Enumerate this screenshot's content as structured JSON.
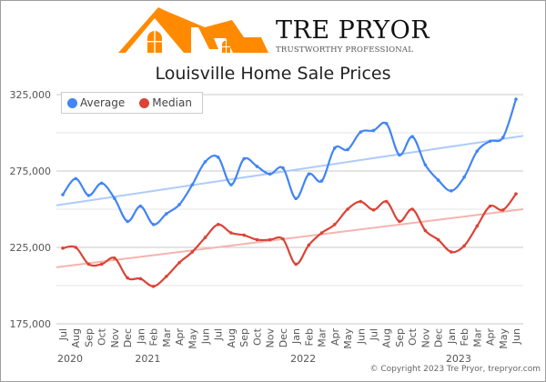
{
  "brand": {
    "name": "TRE PRYOR",
    "tagline": "TRUSTWORTHY PROFESSIONAL",
    "logo_color": "#ff8a00"
  },
  "copyright": "© Copyright 2023 Tre Pryor, trepryor.com",
  "chart_data": {
    "type": "line",
    "title": "Louisville Home Sale Prices",
    "xlabel": "",
    "ylabel": "",
    "ylim": [
      175000,
      325000
    ],
    "yticks": [
      175000,
      225000,
      275000,
      325000
    ],
    "ytick_labels": [
      "175,000",
      "225,000",
      "275,000",
      "325,000"
    ],
    "minor_gridlines": [
      200000,
      250000,
      300000
    ],
    "grid": true,
    "legend_position": "top-left",
    "x": [
      "Jul",
      "Aug",
      "Sep",
      "Oct",
      "Nov",
      "Dec",
      "Jan",
      "Feb",
      "Mar",
      "Apr",
      "May",
      "Jun",
      "Jul",
      "Aug",
      "Sep",
      "Oct",
      "Nov",
      "Dec",
      "Jan",
      "Feb",
      "Mar",
      "Apr",
      "May",
      "Jun",
      "Jul",
      "Aug",
      "Sep",
      "Oct",
      "Nov",
      "Dec",
      "Jan",
      "Feb",
      "Mar",
      "Apr",
      "May",
      "Jun"
    ],
    "year_labels": [
      {
        "label": "2020",
        "index": 0
      },
      {
        "label": "2021",
        "index": 6
      },
      {
        "label": "2022",
        "index": 18
      },
      {
        "label": "2023",
        "index": 30
      }
    ],
    "series": [
      {
        "name": "Average",
        "color": "#4285f4",
        "trend_color": "#aecbfa",
        "values": [
          259500,
          270000,
          259000,
          267000,
          257000,
          242000,
          252000,
          240000,
          247000,
          253000,
          266000,
          281000,
          284000,
          266000,
          283000,
          278000,
          273000,
          277000,
          257000,
          273000,
          268500,
          290000,
          289000,
          300500,
          301500,
          306000,
          285500,
          297500,
          279000,
          269000,
          262000,
          271000,
          288000,
          294500,
          297000,
          322000
        ],
        "trend": [
          252500,
          298000
        ]
      },
      {
        "name": "Median",
        "color": "#db4437",
        "trend_color": "#f4b4ae",
        "values": [
          224500,
          225000,
          214000,
          214000,
          218000,
          205000,
          204500,
          199500,
          206000,
          215000,
          222000,
          231500,
          240000,
          234500,
          233000,
          230000,
          230000,
          230500,
          214000,
          226500,
          234500,
          240000,
          250000,
          255000,
          249500,
          255000,
          242000,
          250000,
          236000,
          230000,
          222000,
          226000,
          239000,
          252000,
          249500,
          260000
        ],
        "trend": [
          212000,
          250000
        ]
      }
    ]
  }
}
